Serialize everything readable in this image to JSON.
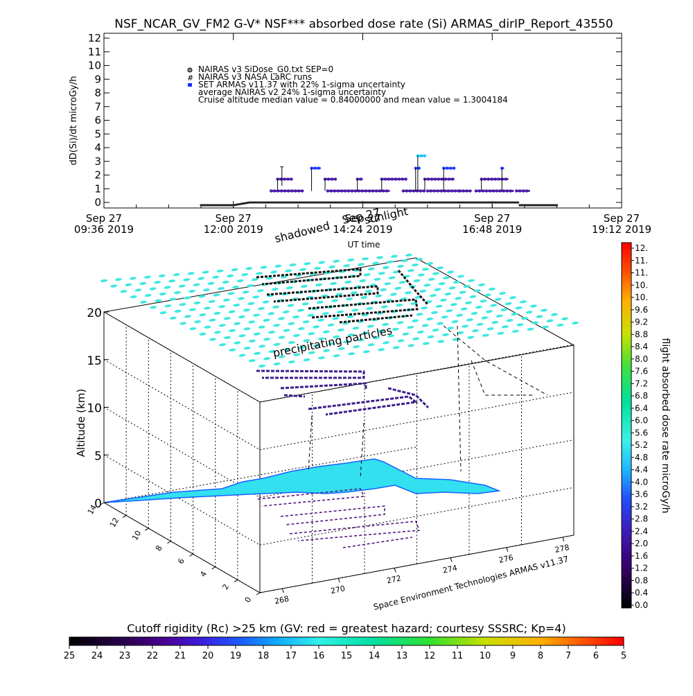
{
  "chart_data": [
    {
      "type": "scatter",
      "title": "NSF_NCAR_GV_FM2 G-V* NSF*** absorbed dose rate (Si) ARMAS_dirIP_Report_43550",
      "xlabel": "UT time",
      "ylabel": "dD(Si)/dt microGy/h",
      "ylim": [
        0,
        12
      ],
      "yticks": [
        "0",
        "1",
        "2",
        "3",
        "4",
        "5",
        "6",
        "7",
        "8",
        "9",
        "10",
        "11",
        "12"
      ],
      "x_ticks": [
        {
          "date": "Sep 27",
          "time": "09:36 2019"
        },
        {
          "date": "Sep 27",
          "time": "12:00 2019"
        },
        {
          "date": "Sep 27",
          "time": "14:24 2019"
        },
        {
          "date": "Sep 27",
          "time": "16:48 2019"
        },
        {
          "date": "Sep 27",
          "time": "19:12 2019"
        }
      ],
      "xlim_hours": [
        9.6,
        19.2
      ],
      "legend": [
        "NAIRAS v3 SiDose_G0.txt SEP=0",
        "NAIRAS v3 NASA LaRC runs",
        "SET ARMAS v11.37 with 22% 1-sigma uncertainty",
        "average NAIRAS v2 24% 1-sigma uncertainty",
        "Cruise altitude median value = 0.84000000 and mean value = 1.3004184"
      ],
      "legend_placement": "top-left",
      "annotations": [
        "shadowed",
        "Sep 27",
        "sunlight"
      ],
      "series": [
        {
          "name": "SET ARMAS v11.37 with 22% 1-sigma uncertainty",
          "segments": [
            {
              "x": [
                12.82,
                13.08
              ],
              "y": 1.7
            },
            {
              "x": [
                12.7,
                13.3
              ],
              "y": 0.84
            },
            {
              "x": [
                13.45,
                13.62
              ],
              "y": 2.5
            },
            {
              "x": [
                13.7,
                13.9
              ],
              "y": 1.7
            },
            {
              "x": [
                13.75,
                14.9
              ],
              "y": 0.84
            },
            {
              "x": [
                14.3,
                14.4
              ],
              "y": 1.7
            },
            {
              "x": [
                14.75,
                15.2
              ],
              "y": 1.7
            },
            {
              "x": [
                15.15,
                15.55
              ],
              "y": 0.84
            },
            {
              "x": [
                15.38,
                15.45
              ],
              "y": 2.5
            },
            {
              "x": [
                15.42,
                15.55
              ],
              "y": 3.4
            },
            {
              "x": [
                15.55,
                16.1
              ],
              "y": 1.7
            },
            {
              "x": [
                15.6,
                16.2
              ],
              "y": 0.84
            },
            {
              "x": [
                15.9,
                16.1
              ],
              "y": 2.5
            },
            {
              "x": [
                16.2,
                16.4
              ],
              "y": 0.84
            },
            {
              "x": [
                16.6,
                17.1
              ],
              "y": 1.7
            },
            {
              "x": [
                16.5,
                17.2
              ],
              "y": 0.84
            },
            {
              "x": [
                16.98,
                17.02
              ],
              "y": 2.5
            },
            {
              "x": [
                17.25,
                17.5
              ],
              "y": 0.84
            }
          ]
        },
        {
          "name": "NAIRAS v3 SiDose_G0.txt SEP=0",
          "x_range": [
            11.4,
            18.0
          ],
          "plateau": 0.2
        }
      ]
    },
    {
      "type": "scatter",
      "title": "",
      "zlabel": "Altitude (km)",
      "zlim": [
        0,
        20
      ],
      "zticks": [
        "0",
        "5",
        "10",
        "15",
        "20"
      ],
      "lon_ticks": [
        "268",
        "270",
        "272",
        "274",
        "276",
        "278"
      ],
      "lat_ticks": [
        "0",
        "2",
        "4",
        "6",
        "8",
        "10",
        "12",
        "14"
      ],
      "annotations": [
        "precipitating particles"
      ],
      "credit": "Space Environment Technologies ARMAS v11.37"
    },
    {
      "type": "heatmap",
      "title": "flight absorbed dose rate microGy/h",
      "ticks": [
        "0.0",
        "0.4",
        "0.8",
        "1.2",
        "1.6",
        "2.0",
        "2.4",
        "2.8",
        "3.2",
        "3.6",
        "4.0",
        "4.4",
        "4.8",
        "5.2",
        "5.6",
        "6.0",
        "6.4",
        "6.8",
        "7.2",
        "7.6",
        "8.0",
        "8.4",
        "8.8",
        "9.2",
        "9.6",
        "10.",
        "10.",
        "11.",
        "11.",
        "12."
      ],
      "range": [
        0,
        12
      ]
    },
    {
      "type": "heatmap",
      "title": "Cutoff rigidity (Rc) >25 km (GV: red = greatest hazard; courtesy SSSRC; Kp=4)",
      "ticks": [
        "25",
        "24",
        "23",
        "22",
        "21",
        "20",
        "19",
        "18",
        "17",
        "16",
        "15",
        "14",
        "13",
        "12",
        "11",
        "10",
        "9",
        "8",
        "7",
        "6",
        "5"
      ],
      "range": [
        25,
        5
      ]
    }
  ]
}
